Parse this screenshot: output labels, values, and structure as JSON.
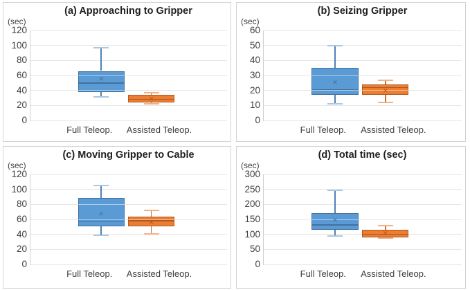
{
  "figure": {
    "background": "#ffffff",
    "panel_border_color": "#d2d2d2",
    "gridline_color": "#e7e7e7",
    "axis_line_color": "#cfcfcf",
    "blue_fill": "#5B9BD5",
    "blue_line": "#41719C",
    "orange_fill": "#ED7D31",
    "orange_line": "#AE5A21",
    "mean_marker_glyph": "×"
  },
  "chart_data": [
    {
      "id": "a",
      "type": "box",
      "title": "(a) Approaching to Gripper",
      "y_unit_label": "(sec)",
      "grid": true,
      "ylim": [
        0,
        120
      ],
      "yticks": [
        0,
        20,
        40,
        60,
        80,
        100,
        120
      ],
      "categories": [
        "Full Teleop.",
        "Assisted Teleop."
      ],
      "series": [
        {
          "category": "Full Teleop.",
          "color": "#5B9BD5",
          "line_color": "#41719C",
          "whisker_color": "#4E81B5",
          "cap_color": "#A9C6E2",
          "min": 31,
          "q1": 38,
          "median": 50,
          "q3": 66,
          "max": 97,
          "mean": 55
        },
        {
          "category": "Assisted Teleop.",
          "color": "#ED7D31",
          "line_color": "#AE5A21",
          "whisker_color": "#C96A28",
          "cap_color": "#F0B088",
          "min": 22,
          "q1": 24,
          "median": 28,
          "q3": 34,
          "max": 37,
          "mean": 29
        }
      ]
    },
    {
      "id": "b",
      "type": "box",
      "title": "(b) Seizing Gripper",
      "y_unit_label": "(sec)",
      "grid": true,
      "ylim": [
        0,
        60
      ],
      "yticks": [
        0,
        10,
        20,
        30,
        40,
        50,
        60
      ],
      "categories": [
        "Full Teleop.",
        "Assisted Teleop."
      ],
      "series": [
        {
          "category": "Full Teleop.",
          "color": "#5B9BD5",
          "line_color": "#41719C",
          "whisker_color": "#4E81B5",
          "cap_color": "#A9C6E2",
          "min": 11,
          "q1": 17,
          "median": 20.5,
          "q3": 35,
          "max": 50,
          "mean": 25.5
        },
        {
          "category": "Assisted Teleop.",
          "color": "#ED7D31",
          "line_color": "#AE5A21",
          "whisker_color": "#C96A28",
          "cap_color": "#F0B088",
          "min": 12,
          "q1": 17,
          "median": 22,
          "q3": 24,
          "max": 27,
          "mean": 20
        }
      ]
    },
    {
      "id": "c",
      "type": "box",
      "title": "(c) Moving Gripper to Cable",
      "y_unit_label": "(sec)",
      "grid": true,
      "ylim": [
        0,
        120
      ],
      "yticks": [
        0,
        20,
        40,
        60,
        80,
        100,
        120
      ],
      "categories": [
        "Full Teleop.",
        "Assisted Teleop."
      ],
      "series": [
        {
          "category": "Full Teleop.",
          "color": "#5B9BD5",
          "line_color": "#41719C",
          "whisker_color": "#4E81B5",
          "cap_color": "#A9C6E2",
          "min": 39,
          "q1": 51,
          "median": 57,
          "q3": 89,
          "max": 105,
          "mean": 67
        },
        {
          "category": "Assisted Teleop.",
          "color": "#ED7D31",
          "line_color": "#AE5A21",
          "whisker_color": "#C96A28",
          "cap_color": "#F0B088",
          "min": 41,
          "q1": 51,
          "median": 58,
          "q3": 64,
          "max": 72,
          "mean": 56
        }
      ]
    },
    {
      "id": "d",
      "type": "box",
      "title": "(d) Total time (sec)",
      "y_unit_label": "(sec)",
      "grid": true,
      "ylim": [
        0,
        300
      ],
      "yticks": [
        0,
        50,
        100,
        150,
        200,
        250,
        300
      ],
      "categories": [
        "Full Teleop.",
        "Assisted Teleop."
      ],
      "series": [
        {
          "category": "Full Teleop.",
          "color": "#5B9BD5",
          "line_color": "#41719C",
          "whisker_color": "#4E81B5",
          "cap_color": "#A9C6E2",
          "min": 95,
          "q1": 116,
          "median": 132,
          "q3": 171,
          "max": 246,
          "mean": 148
        },
        {
          "category": "Assisted Teleop.",
          "color": "#ED7D31",
          "line_color": "#AE5A21",
          "whisker_color": "#C96A28",
          "cap_color": "#F0B088",
          "min": 87,
          "q1": 91,
          "median": 100,
          "q3": 115,
          "max": 130,
          "mean": 105
        }
      ]
    }
  ]
}
